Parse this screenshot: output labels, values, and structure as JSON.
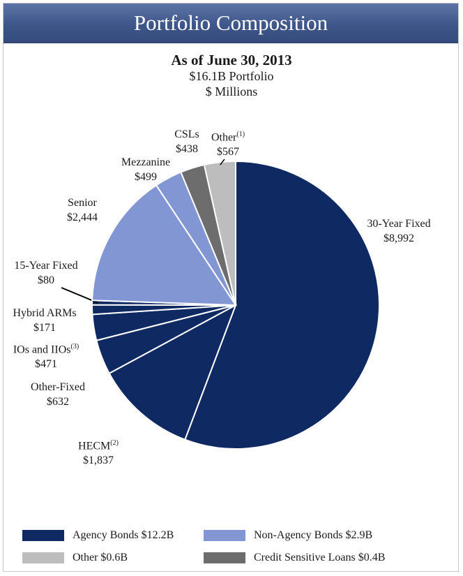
{
  "header": {
    "title": "Portfolio Composition"
  },
  "chart_data": {
    "type": "pie",
    "title": "As of June 30, 2013",
    "subtitle_1": "$16.1B Portfolio",
    "subtitle_2": "$ Millions",
    "slices": [
      {
        "label": "30-Year Fixed",
        "value_label": "$8,992",
        "value": 8992,
        "group": "Agency Bonds",
        "color": "#0f2a62"
      },
      {
        "label": "HECM",
        "note": "(2)",
        "value_label": "$1,837",
        "value": 1837,
        "group": "Agency Bonds",
        "color": "#0f2a62"
      },
      {
        "label": "Other-Fixed",
        "value_label": "$632",
        "value": 632,
        "group": "Agency Bonds",
        "color": "#0f2a62"
      },
      {
        "label": "IOs and IIOs",
        "note": "(3)",
        "value_label": "$471",
        "value": 471,
        "group": "Agency Bonds",
        "color": "#0f2a62"
      },
      {
        "label": "Hybrid ARMs",
        "value_label": "$171",
        "value": 171,
        "group": "Agency Bonds",
        "color": "#0f2a62"
      },
      {
        "label": "15-Year Fixed",
        "value_label": "$80",
        "value": 80,
        "group": "Agency Bonds",
        "color": "#0f2a62"
      },
      {
        "label": "Senior",
        "value_label": "$2,444",
        "value": 2444,
        "group": "Non-Agency Bonds",
        "color": "#8196d3"
      },
      {
        "label": "Mezzanine",
        "value_label": "$499",
        "value": 499,
        "group": "Non-Agency Bonds",
        "color": "#8196d3"
      },
      {
        "label": "CSLs",
        "value_label": "$438",
        "value": 438,
        "group": "Credit Sensitive Loans",
        "color": "#6d6d6d"
      },
      {
        "label": "Other",
        "note": "(1)",
        "value_label": "$567",
        "value": 567,
        "group": "Other",
        "color": "#bdbdbd"
      }
    ],
    "legend": [
      {
        "label": "Agency Bonds $12.2B",
        "color": "#0f2a62"
      },
      {
        "label": "Non-Agency Bonds $2.9B",
        "color": "#8196d3"
      },
      {
        "label": "Other $0.6B",
        "color": "#bdbdbd"
      },
      {
        "label": "Credit Sensitive Loans $0.4B",
        "color": "#6d6d6d"
      }
    ]
  }
}
